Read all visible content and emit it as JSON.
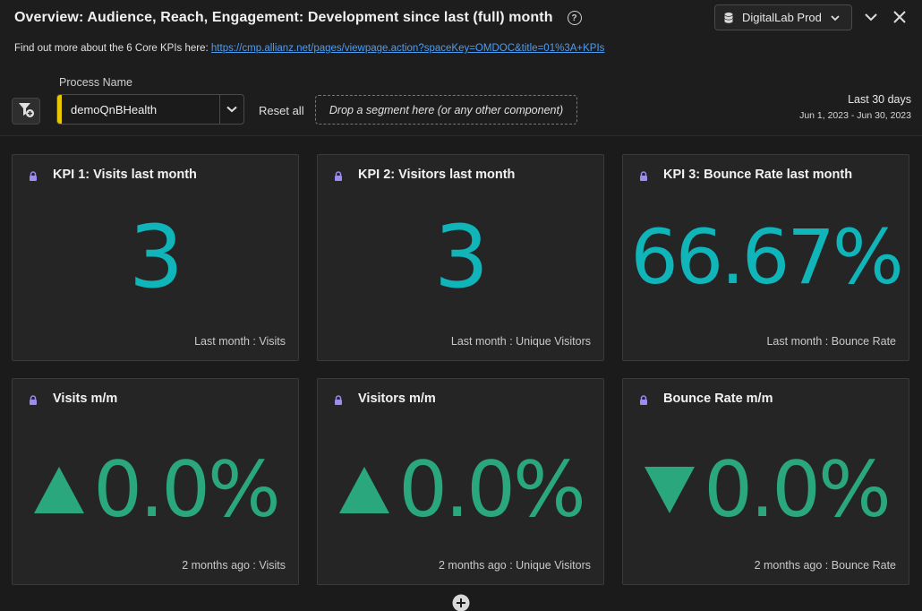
{
  "header": {
    "title": "Overview: Audience, Reach, Engagement: Development since last (full) month",
    "help_icon": "help-circle-icon",
    "report_suite": "DigitalLab Prod",
    "info_text": "Find out more about the 6 Core KPIs here: ",
    "info_link": "https://cmp.allianz.net/pages/viewpage.action?spaceKey=OMDOC&title=01%3A+KPIs"
  },
  "filters": {
    "dropdown_label": "Process Name",
    "dropdown_value": "demoQnBHealth",
    "reset_label": "Reset all",
    "drop_zone": "Drop a segment here (or any other component)",
    "date_title": "Last 30 days",
    "date_range": "Jun 1, 2023 - Jun 30, 2023"
  },
  "colors": {
    "accent_value": "#0fb5b8",
    "change_value": "#2aa77d",
    "dropdown_stripe": "#e8c700"
  },
  "panels": [
    {
      "title": "KPI 1: Visits last month",
      "value": "3",
      "caption": "Last month : Visits"
    },
    {
      "title": "KPI 2: Visitors last month",
      "value": "3",
      "caption": "Last month : Unique Visitors"
    },
    {
      "title": "KPI 3: Bounce Rate last month",
      "value": "66.67%",
      "caption": "Last month : Bounce Rate"
    },
    {
      "title": "Visits m/m",
      "value": "0.0%",
      "direction": "up",
      "caption": "2 months ago : Visits"
    },
    {
      "title": "Visitors m/m",
      "value": "0.0%",
      "direction": "up",
      "caption": "2 months ago : Unique Visitors"
    },
    {
      "title": "Bounce Rate m/m",
      "value": "0.0%",
      "direction": "down",
      "caption": "2 months ago : Bounce Rate"
    }
  ]
}
